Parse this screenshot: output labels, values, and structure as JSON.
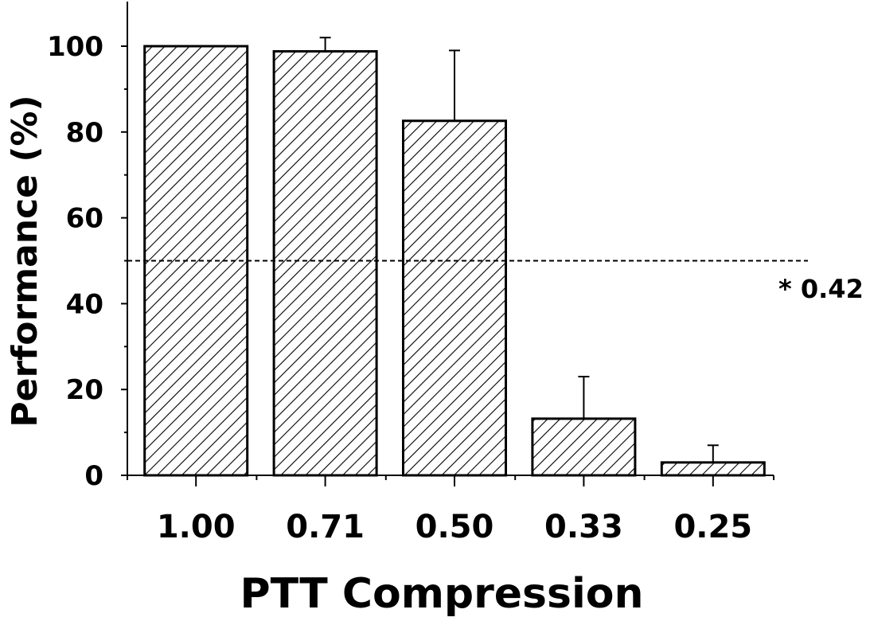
{
  "chart_data": {
    "type": "bar",
    "title": "",
    "xlabel": "PTT Compression",
    "ylabel": "Performance (%)",
    "categories": [
      "1.00",
      "0.71",
      "0.50",
      "0.33",
      "0.25"
    ],
    "values": [
      100,
      98.8,
      82.6,
      13.2,
      3.0
    ],
    "error_upper": [
      100,
      102,
      99,
      23,
      7
    ],
    "ylim": [
      0,
      110
    ],
    "yticks": [
      "0",
      "20",
      "40",
      "60",
      "80",
      "100"
    ],
    "grid": false,
    "bar_pattern": "diagonal-hatch",
    "reference_line": {
      "y": 50,
      "style": "dashed",
      "label": "* 0.42"
    }
  }
}
